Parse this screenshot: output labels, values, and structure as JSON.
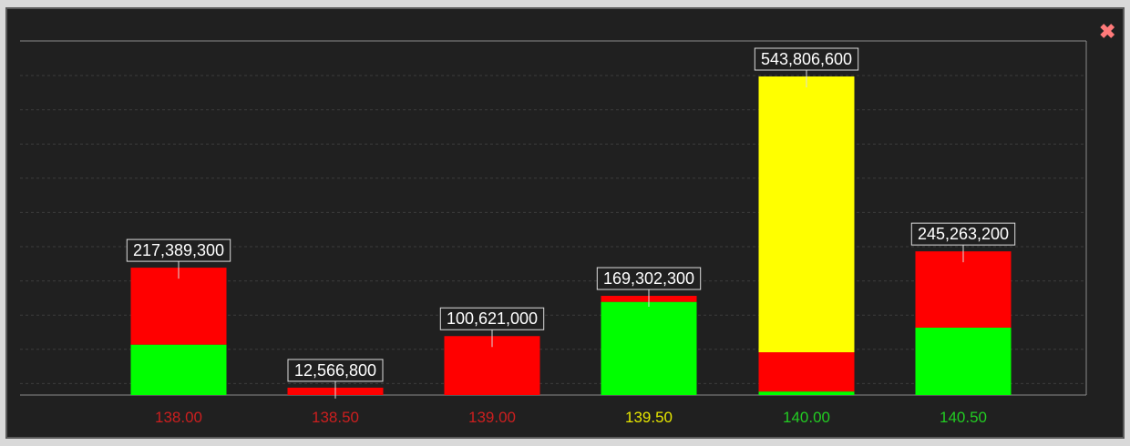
{
  "close_icon": "close-icon",
  "chart_data": {
    "type": "bar",
    "stacked": true,
    "categories": [
      "138.00",
      "138.50",
      "139.00",
      "139.50",
      "140.00",
      "140.50"
    ],
    "category_colors": [
      "#cc1f1f",
      "#cc1f1f",
      "#cc1f1f",
      "#e6e600",
      "#22cc22",
      "#22cc22"
    ],
    "totals": [
      "217,389,300",
      "12,566,800",
      "100,621,000",
      "169,302,300",
      "543,806,600",
      "245,263,200"
    ],
    "series": [
      {
        "color": "#00ff00",
        "values": [
          86000000,
          0,
          0,
          159000000,
          6000000,
          115000000
        ]
      },
      {
        "color": "#ff0000",
        "values": [
          131389300,
          12566800,
          100621000,
          10302300,
          67000000,
          130263200
        ]
      },
      {
        "color": "#ffff00",
        "values": [
          0,
          0,
          0,
          0,
          470806600,
          0
        ]
      }
    ],
    "ylim": [
      0,
      620000000
    ],
    "grid": true,
    "background": "#202020",
    "grid_color": "#3c3c3c",
    "axis_color": "#8a8a8a"
  }
}
